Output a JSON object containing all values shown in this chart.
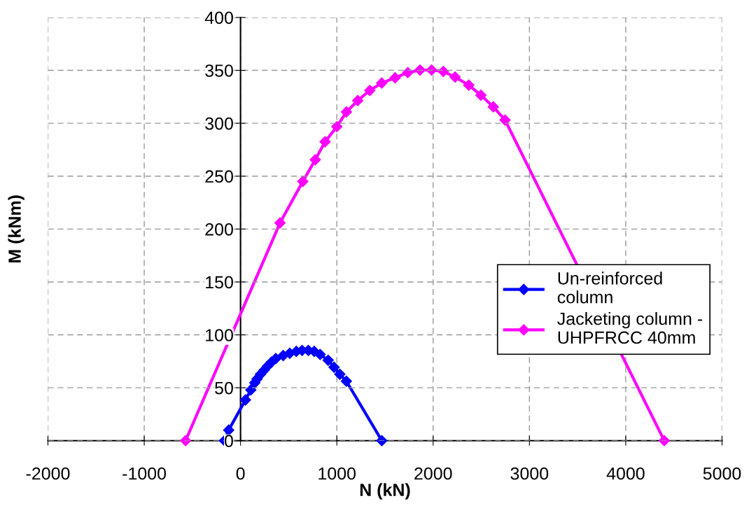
{
  "chart_data": {
    "type": "line",
    "xlabel": "N (kN)",
    "ylabel": "M (kNm)",
    "xlim": [
      -2000,
      5000
    ],
    "xticks": [
      -2000,
      -1000,
      0,
      1000,
      2000,
      3000,
      4000,
      5000
    ],
    "ylim": [
      0,
      400
    ],
    "yticks": [
      0,
      50,
      100,
      150,
      200,
      250,
      300,
      350,
      400
    ],
    "grid": true,
    "legend": "right",
    "marker": "diamond",
    "line_style": "solid",
    "series": [
      {
        "name": "Un-reinforced column",
        "color": "#0000ff",
        "x": [
          -167,
          -123,
          51,
          107,
          148,
          172,
          208,
          245,
          281,
          322,
          366,
          443,
          511,
          579,
          639,
          704,
          765,
          826,
          910,
          971,
          1031,
          1099,
          1467
        ],
        "values": [
          0,
          10,
          38.5,
          48,
          54.7,
          58.4,
          62.8,
          66.6,
          70.5,
          74.3,
          77.6,
          80.5,
          82.6,
          84.4,
          85.3,
          85.3,
          84.4,
          81.5,
          76,
          69.4,
          62.8,
          56.2,
          0
        ]
      },
      {
        "name": "Jacketing column - UHPFRCC 40mm",
        "color": "#ff00ff",
        "x": [
          -571,
          410,
          647,
          776,
          878,
          1000,
          1100,
          1217,
          1342,
          1466,
          1605,
          1737,
          1864,
          1984,
          2106,
          2228,
          2370,
          2496,
          2625,
          2747,
          4400
        ],
        "values": [
          0,
          205.8,
          245,
          265.5,
          282.5,
          296.8,
          310.7,
          321.5,
          331,
          338,
          343,
          347.9,
          350.3,
          350.3,
          349,
          343.7,
          336,
          326.5,
          315.5,
          303,
          0
        ]
      }
    ]
  }
}
